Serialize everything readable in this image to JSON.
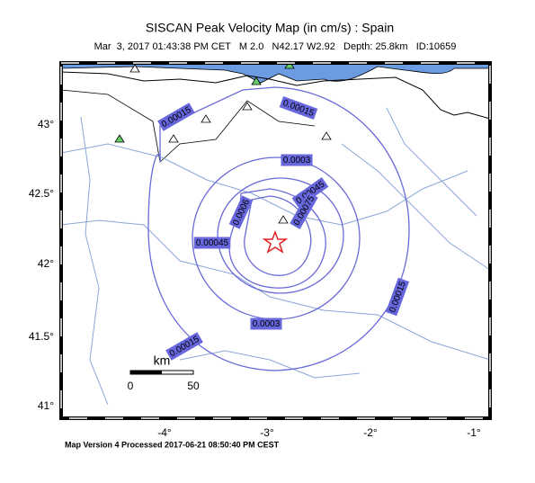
{
  "header": {
    "title": "SISCAN Peak Velocity Map (in cm/s) : Spain",
    "subtitle": "Mar  3, 2017 01:43:38 PM CET   M 2.0   N42.17 W2.92   Depth: 25.8km   ID:10659"
  },
  "map": {
    "lat_labels": [
      "43°",
      "42.5°",
      "42°",
      "41.5°",
      "41°"
    ],
    "lon_labels": [
      "-4°",
      "-3°",
      "-2°",
      "-1°"
    ],
    "contour_labels": [
      "0.00015",
      "0.00015",
      "0.0003",
      "0.00045",
      "0.0006",
      "0.00075",
      "0.00045",
      "0.0003",
      "0.00015",
      "0.00015"
    ],
    "scale": {
      "unit": "km",
      "start": "0",
      "end": "50"
    }
  },
  "footer": "Map Version 4 Processed 2017-06-21 08:50:40 PM CEST"
}
